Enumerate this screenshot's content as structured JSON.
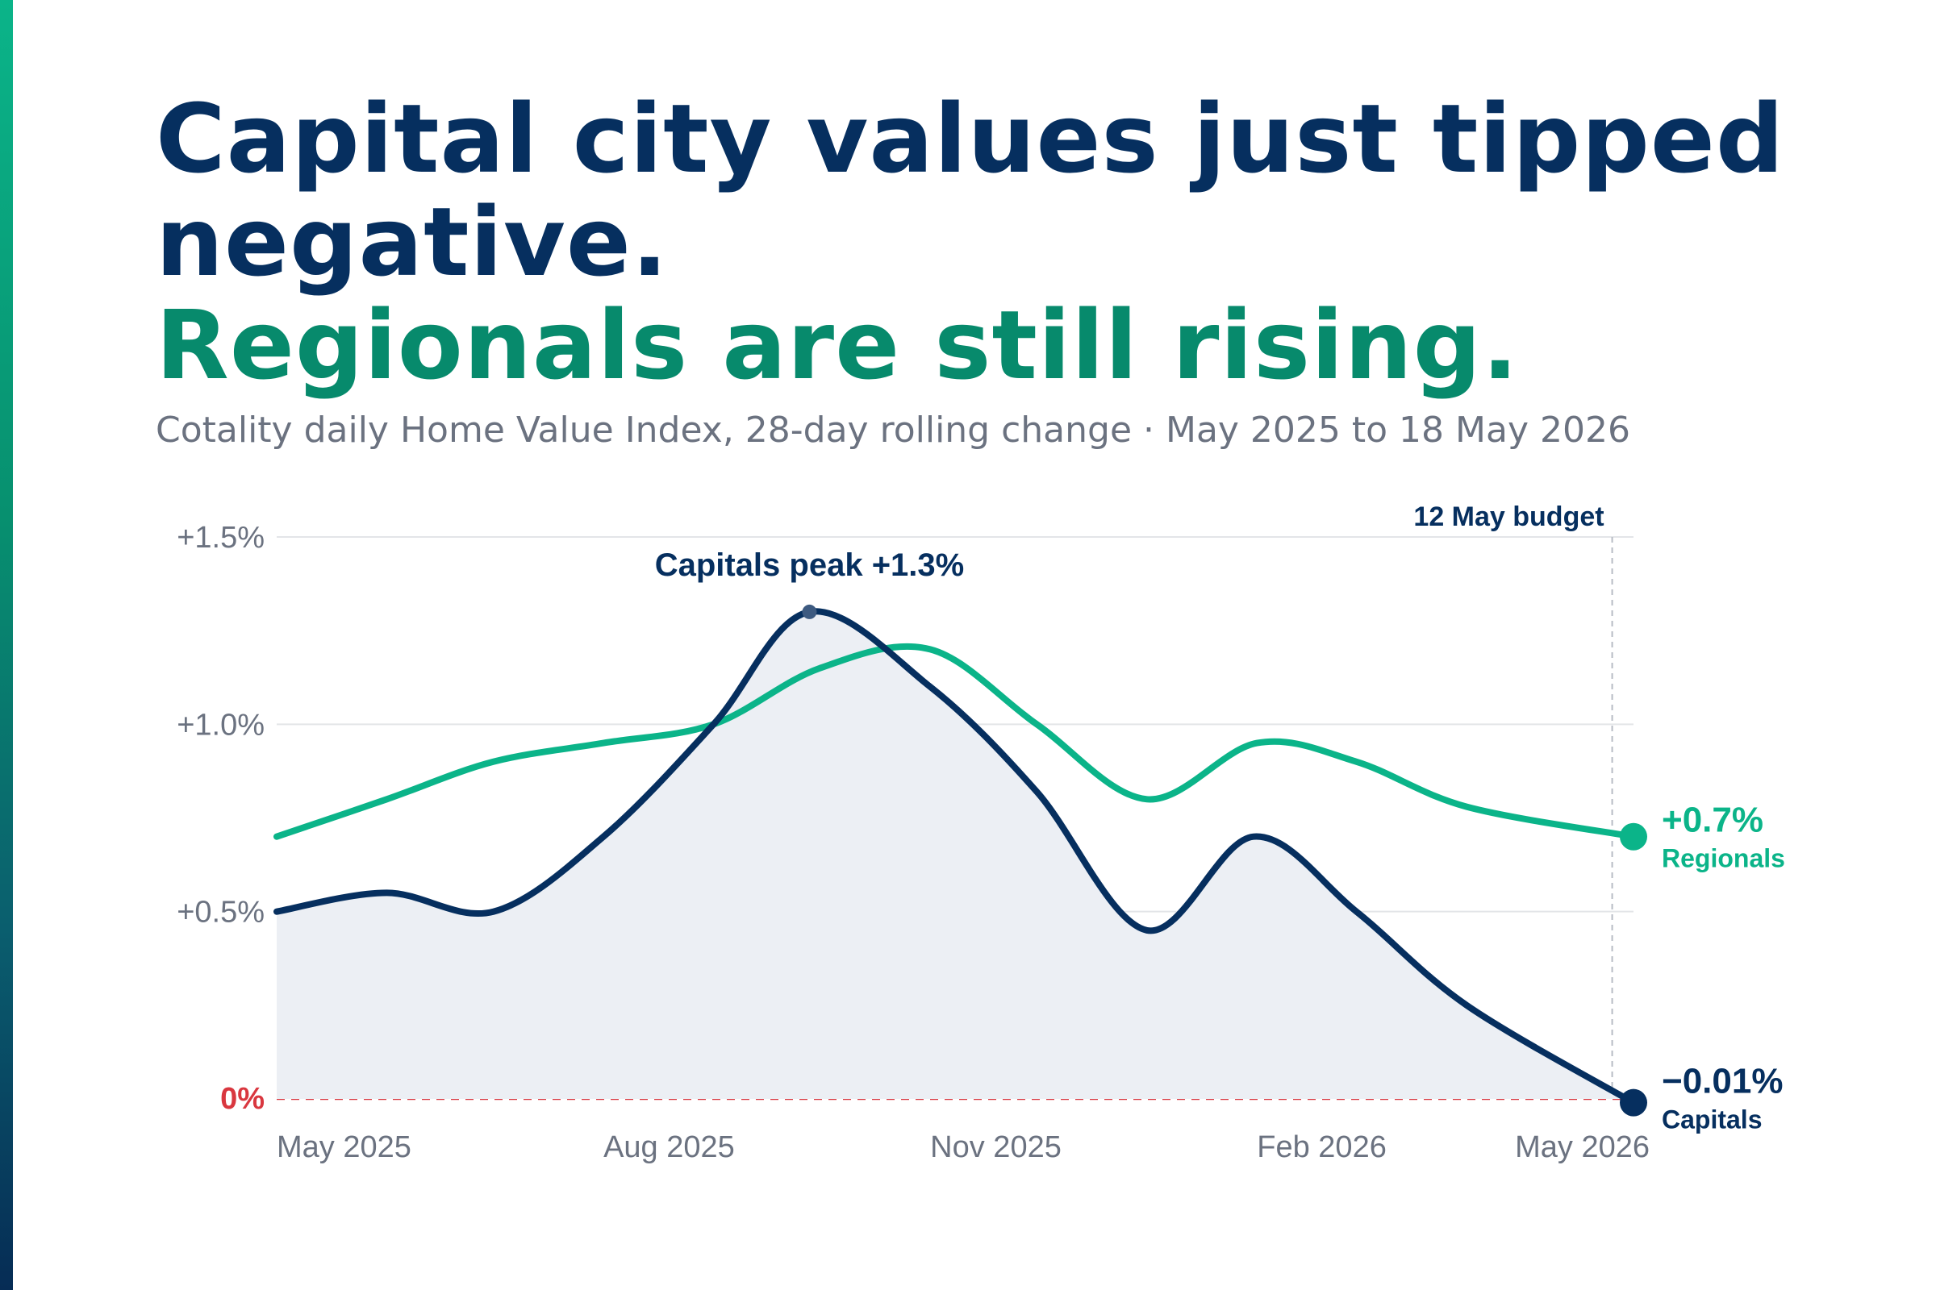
{
  "header": {
    "title_line1": "Capital city values just tipped",
    "title_line2": "negative.",
    "title_line3": "Regionals are still rising.",
    "subtitle": "Cotality daily Home Value Index, 28-day rolling change · May 2025 to 18 May 2026"
  },
  "colors": {
    "capitals": "#062f5f",
    "regionals": "#0bb489",
    "zero_line": "#d9373f",
    "gridline": "#e3e5e8",
    "tick_text": "#6b7280",
    "area_fill": "#eceff4"
  },
  "chart_data": {
    "type": "line",
    "title": "",
    "xlabel": "",
    "ylabel": "",
    "ylim": [
      0,
      1.5
    ],
    "xlim": [
      "2025-05-01",
      "2026-05-18"
    ],
    "yticks": [
      {
        "value": 0,
        "label": "0%"
      },
      {
        "value": 0.5,
        "label": "+0.5%"
      },
      {
        "value": 1.0,
        "label": "+1.0%"
      },
      {
        "value": 1.5,
        "label": "+1.5%"
      }
    ],
    "xticks": [
      {
        "date": "2025-05-01",
        "label": "May 2025"
      },
      {
        "date": "2025-08-01",
        "label": "Aug 2025"
      },
      {
        "date": "2025-11-01",
        "label": "Nov 2025"
      },
      {
        "date": "2026-02-01",
        "label": "Feb 2026"
      },
      {
        "date": "2026-05-01",
        "label": "May 2026"
      }
    ],
    "grid": true,
    "series": [
      {
        "name": "Capitals",
        "end_label": "−0.01%",
        "points": [
          [
            "2025-05-01",
            0.5
          ],
          [
            "2025-06-01",
            0.55
          ],
          [
            "2025-07-01",
            0.5
          ],
          [
            "2025-08-01",
            0.7
          ],
          [
            "2025-09-01",
            1.0
          ],
          [
            "2025-09-28",
            1.3
          ],
          [
            "2025-11-01",
            1.1
          ],
          [
            "2025-12-01",
            0.82
          ],
          [
            "2026-01-01",
            0.45
          ],
          [
            "2026-01-31",
            0.7
          ],
          [
            "2026-03-01",
            0.5
          ],
          [
            "2026-04-01",
            0.25
          ],
          [
            "2026-05-18",
            -0.01
          ]
        ]
      },
      {
        "name": "Regionals",
        "end_label": "+0.7%",
        "points": [
          [
            "2025-05-01",
            0.7
          ],
          [
            "2025-06-01",
            0.8
          ],
          [
            "2025-07-01",
            0.9
          ],
          [
            "2025-08-01",
            0.95
          ],
          [
            "2025-09-01",
            1.0
          ],
          [
            "2025-10-01",
            1.15
          ],
          [
            "2025-11-01",
            1.2
          ],
          [
            "2025-12-01",
            1.0
          ],
          [
            "2026-01-01",
            0.8
          ],
          [
            "2026-02-01",
            0.95
          ],
          [
            "2026-03-01",
            0.9
          ],
          [
            "2026-04-01",
            0.78
          ],
          [
            "2026-05-18",
            0.7
          ]
        ]
      }
    ],
    "annotations": [
      {
        "text": "Capitals peak +1.3%",
        "date": "2025-09-28",
        "value": 1.3
      },
      {
        "text": "12 May budget",
        "date": "2026-05-12"
      }
    ]
  }
}
